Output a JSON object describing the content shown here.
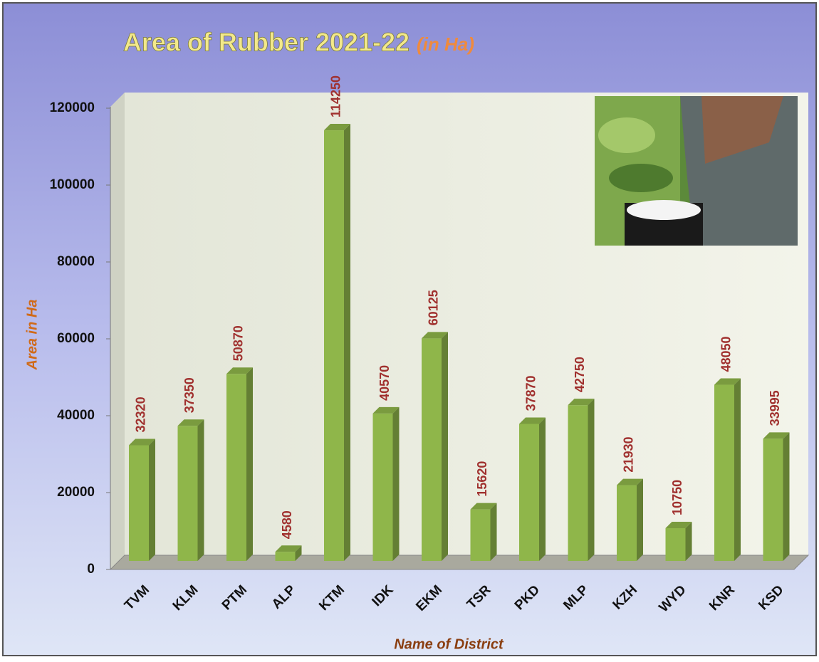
{
  "chart_data": {
    "type": "bar",
    "title": "Area of Rubber 2021-22",
    "subtitle": "(in Ha)",
    "x_label": "Name of District",
    "y_label": "Area in Ha",
    "categories": [
      "TVM",
      "KLM",
      "PTM",
      "ALP",
      "KTM",
      "IDK",
      "EKM",
      "TSR",
      "PKD",
      "MLP",
      "KZH",
      "WYD",
      "KNR",
      "KSD"
    ],
    "values": [
      32320,
      37350,
      50870,
      4580,
      114250,
      40570,
      60125,
      15620,
      37870,
      42750,
      21930,
      10750,
      48050,
      33995
    ],
    "color": "#8fb64a",
    "ylim": [
      0,
      120000
    ],
    "yticks": [
      0,
      20000,
      40000,
      60000,
      80000,
      100000,
      120000
    ]
  }
}
